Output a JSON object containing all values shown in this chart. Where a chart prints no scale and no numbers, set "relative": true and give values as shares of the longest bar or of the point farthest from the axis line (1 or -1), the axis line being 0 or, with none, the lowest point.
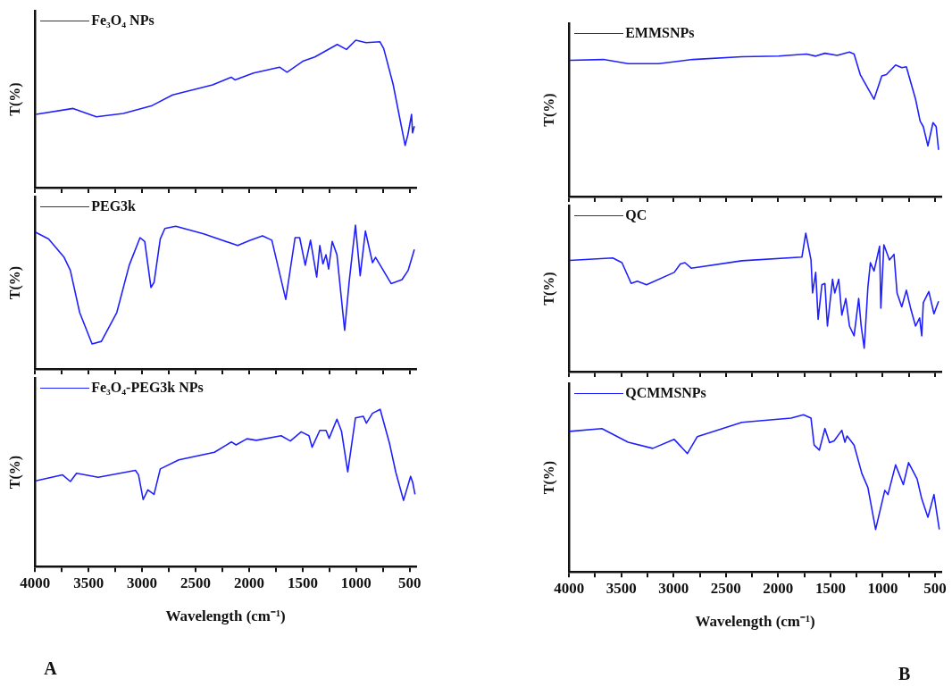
{
  "chart_data": [
    {
      "type": "line",
      "relative": true,
      "xlim": [
        4000,
        440
      ],
      "xticks": [
        4000,
        {
          "value": 3750,
          "label": null
        },
        3500,
        {
          "value": 3250,
          "label": null
        },
        3000,
        {
          "value": 2750,
          "label": null
        },
        2500,
        {
          "value": 2250,
          "label": null
        },
        2000,
        {
          "value": 1750,
          "label": null
        },
        1500,
        {
          "value": 1250,
          "label": null
        },
        1000,
        {
          "value": 750,
          "label": null
        },
        500
      ],
      "ylabel": "T(%)",
      "legend": "top left",
      "tick_labels": false,
      "marker": "none",
      "line_style": "solid",
      "series": [
        {
          "name": "Fe₃O₄ NPs",
          "color": "#2020ff",
          "x": [
            3991,
            3644,
            3427,
            3175,
            2914,
            2715,
            2341,
            2167,
            2133,
            1959,
            1716,
            1646,
            1499,
            1386,
            1177,
            1091,
            1004,
            908,
            778,
            743,
            656,
            543,
            517,
            483,
            474,
            457
          ],
          "values": [
            0.497,
            0.537,
            0.48,
            0.503,
            0.554,
            0.629,
            0.697,
            0.749,
            0.731,
            0.777,
            0.817,
            0.783,
            0.857,
            0.886,
            0.971,
            0.937,
            1,
            0.983,
            0.989,
            0.943,
            0.703,
            0.286,
            0.36,
            0.497,
            0.371,
            0.417
          ]
        }
      ]
    },
    {
      "type": "line",
      "relative": true,
      "xlim": [
        4000,
        440
      ],
      "xticks": [
        4000,
        {
          "value": 3750,
          "label": null
        },
        3500,
        {
          "value": 3250,
          "label": null
        },
        3000,
        {
          "value": 2750,
          "label": null
        },
        2500,
        {
          "value": 2250,
          "label": null
        },
        2000,
        {
          "value": 1750,
          "label": null
        },
        1500,
        {
          "value": 1250,
          "label": null
        },
        1000,
        {
          "value": 750,
          "label": null
        },
        500
      ],
      "ylabel": "T(%)",
      "legend": "top left",
      "tick_labels": false,
      "marker": "none",
      "line_style": "solid",
      "series": [
        {
          "name": "PEG3k",
          "color": "#2020ff",
          "x": [
            3994,
            3873,
            3728,
            3670,
            3583,
            3467,
            3380,
            3236,
            3120,
            3019,
            2975,
            2917,
            2888,
            2830,
            2787,
            2686,
            2425,
            2107,
            1991,
            1875,
            1788,
            1658,
            1571,
            1528,
            1476,
            1427,
            1369,
            1340,
            1311,
            1282,
            1258,
            1224,
            1180,
            1108,
            1065,
            1007,
            963,
            914,
            848,
            819,
            674,
            572,
            515,
            457
          ],
          "values": [
            0.951,
            0.905,
            0.777,
            0.686,
            0.393,
            0.174,
            0.192,
            0.393,
            0.722,
            0.914,
            0.887,
            0.567,
            0.603,
            0.905,
            0.978,
            0.993,
            0.941,
            0.859,
            0.896,
            0.927,
            0.896,
            0.484,
            0.914,
            0.914,
            0.722,
            0.896,
            0.64,
            0.859,
            0.731,
            0.795,
            0.695,
            0.887,
            0.795,
            0.269,
            0.612,
            1,
            0.649,
            0.96,
            0.74,
            0.777,
            0.594,
            0.622,
            0.686,
            0.832
          ]
        }
      ]
    },
    {
      "type": "line",
      "relative": true,
      "xlim": [
        4000,
        440
      ],
      "xticks": [
        4000,
        {
          "value": 3750,
          "label": null
        },
        3500,
        {
          "value": 3250,
          "label": null
        },
        3000,
        {
          "value": 2750,
          "label": null
        },
        2500,
        {
          "value": 2250,
          "label": null
        },
        2000,
        {
          "value": 1750,
          "label": null
        },
        1500,
        {
          "value": 1250,
          "label": null
        },
        1000,
        {
          "value": 750,
          "label": null
        },
        500
      ],
      "xlabel": "Wavelength (cm⁻¹)",
      "ylabel": "T(%)",
      "legend": "top left",
      "tick_labels": "x",
      "marker": "none",
      "line_style": "solid",
      "annotations": [
        "A"
      ],
      "series": [
        {
          "name": "Fe₃O₄-PEG3k NPs",
          "color": "#2020ff",
          "x": [
            3994,
            3742,
            3670,
            3612,
            3409,
            3062,
            3033,
            2990,
            2946,
            2888,
            2830,
            2657,
            2324,
            2165,
            2122,
            2020,
            1933,
            1701,
            1615,
            1514,
            1441,
            1412,
            1340,
            1282,
            1253,
            1180,
            1137,
            1079,
            1007,
            934,
            905,
            848,
            776,
            689,
            631,
            558,
            492,
            472,
            451
          ],
          "values": [
            0.545,
            0.583,
            0.541,
            0.593,
            0.568,
            0.612,
            0.583,
            0.426,
            0.488,
            0.459,
            0.621,
            0.679,
            0.727,
            0.793,
            0.774,
            0.813,
            0.803,
            0.832,
            0.799,
            0.857,
            0.832,
            0.759,
            0.866,
            0.866,
            0.816,
            0.937,
            0.86,
            0.602,
            0.946,
            0.956,
            0.912,
            0.975,
            1,
            0.784,
            0.602,
            0.421,
            0.574,
            0.535,
            0.459
          ]
        }
      ]
    },
    {
      "type": "line",
      "relative": true,
      "xlim": [
        4000,
        440
      ],
      "xticks": [
        4000,
        {
          "value": 3750,
          "label": null
        },
        3500,
        {
          "value": 3250,
          "label": null
        },
        3000,
        {
          "value": 2750,
          "label": null
        },
        2500,
        {
          "value": 2250,
          "label": null
        },
        2000,
        {
          "value": 1750,
          "label": null
        },
        1500,
        {
          "value": 1250,
          "label": null
        },
        1000,
        {
          "value": 750,
          "label": null
        },
        500
      ],
      "ylabel": "T(%)",
      "legend": "top left",
      "tick_labels": false,
      "marker": "none",
      "line_style": "solid",
      "series": [
        {
          "name": "EMMSNPs",
          "color": "#2020ff",
          "x": [
            3995,
            3671,
            3435,
            3142,
            2818,
            2347,
            1994,
            1729,
            1641,
            1553,
            1436,
            1318,
            1274,
            1215,
            1083,
            1009,
            965,
            877,
            818,
            774,
            686,
            642,
            612,
            568,
            519,
            489,
            466
          ],
          "values": [
            0.943,
            0.949,
            0.92,
            0.92,
            0.949,
            0.968,
            0.973,
            0.987,
            0.972,
            0.992,
            0.977,
            1,
            0.987,
            0.844,
            0.674,
            0.835,
            0.844,
            0.911,
            0.892,
            0.898,
            0.674,
            0.522,
            0.484,
            0.351,
            0.512,
            0.484,
            0.323
          ]
        }
      ]
    },
    {
      "type": "line",
      "relative": true,
      "xlim": [
        4000,
        440
      ],
      "xticks": [
        4000,
        {
          "value": 3750,
          "label": null
        },
        3500,
        {
          "value": 3250,
          "label": null
        },
        3000,
        {
          "value": 2750,
          "label": null
        },
        2500,
        {
          "value": 2250,
          "label": null
        },
        2000,
        {
          "value": 1750,
          "label": null
        },
        1500,
        {
          "value": 1250,
          "label": null
        },
        1000,
        {
          "value": 750,
          "label": null
        },
        500
      ],
      "ylabel": "T(%)",
      "legend": "top left",
      "tick_labels": false,
      "marker": "none",
      "line_style": "solid",
      "series": [
        {
          "name": "QC",
          "color": "#2020ff",
          "x": [
            3995,
            3582,
            3494,
            3406,
            3347,
            3259,
            2994,
            2936,
            2892,
            2832,
            2347,
            1773,
            1736,
            1686,
            1671,
            1641,
            1618,
            1582,
            1553,
            1529,
            1480,
            1459,
            1421,
            1391,
            1353,
            1318,
            1274,
            1230,
            1206,
            1177,
            1142,
            1118,
            1083,
            1030,
            1018,
            989,
            936,
            892,
            863,
            818,
            774,
            730,
            686,
            647,
            627,
            612,
            559,
            510,
            466
          ],
          "values": [
            0.803,
            0.821,
            0.787,
            0.637,
            0.653,
            0.627,
            0.717,
            0.777,
            0.787,
            0.747,
            0.801,
            0.827,
            1,
            0.807,
            0.568,
            0.717,
            0.378,
            0.627,
            0.637,
            0.329,
            0.667,
            0.568,
            0.667,
            0.408,
            0.528,
            0.329,
            0.259,
            0.528,
            0.329,
            0.169,
            0.608,
            0.787,
            0.727,
            0.906,
            0.458,
            0.916,
            0.807,
            0.847,
            0.568,
            0.468,
            0.588,
            0.448,
            0.329,
            0.388,
            0.259,
            0.498,
            0.578,
            0.418,
            0.508
          ]
        }
      ]
    },
    {
      "type": "line",
      "relative": true,
      "xlim": [
        4000,
        440
      ],
      "xticks": [
        4000,
        {
          "value": 3750,
          "label": null
        },
        3500,
        {
          "value": 3250,
          "label": null
        },
        3000,
        {
          "value": 2750,
          "label": null
        },
        2500,
        {
          "value": 2250,
          "label": null
        },
        2000,
        {
          "value": 1750,
          "label": null
        },
        1500,
        {
          "value": 1250,
          "label": null
        },
        1000,
        {
          "value": 750,
          "label": null
        },
        500
      ],
      "xlabel": "Wavelength (cm⁻¹)",
      "ylabel": "T(%)",
      "legend": "top left",
      "tick_labels": "x",
      "marker": "none",
      "line_style": "solid",
      "annotations": [
        "B"
      ],
      "series": [
        {
          "name": "QCMMSNPs",
          "color": "#2020ff",
          "x": [
            3995,
            3686,
            3435,
            3200,
            2994,
            2868,
            2773,
            2347,
            1876,
            1758,
            1686,
            1656,
            1606,
            1553,
            1509,
            1465,
            1391,
            1362,
            1341,
            1274,
            1200,
            1142,
            1068,
            980,
            950,
            877,
            803,
            753,
            671,
            627,
            568,
            510,
            459
          ],
          "values": [
            0.894,
            0.912,
            0.825,
            0.786,
            0.843,
            0.753,
            0.861,
            0.951,
            0.978,
            1,
            0.978,
            0.807,
            0.775,
            0.912,
            0.822,
            0.834,
            0.901,
            0.825,
            0.865,
            0.807,
            0.627,
            0.537,
            0.27,
            0.519,
            0.492,
            0.681,
            0.555,
            0.695,
            0.591,
            0.465,
            0.348,
            0.492,
            0.27
          ]
        }
      ]
    }
  ]
}
